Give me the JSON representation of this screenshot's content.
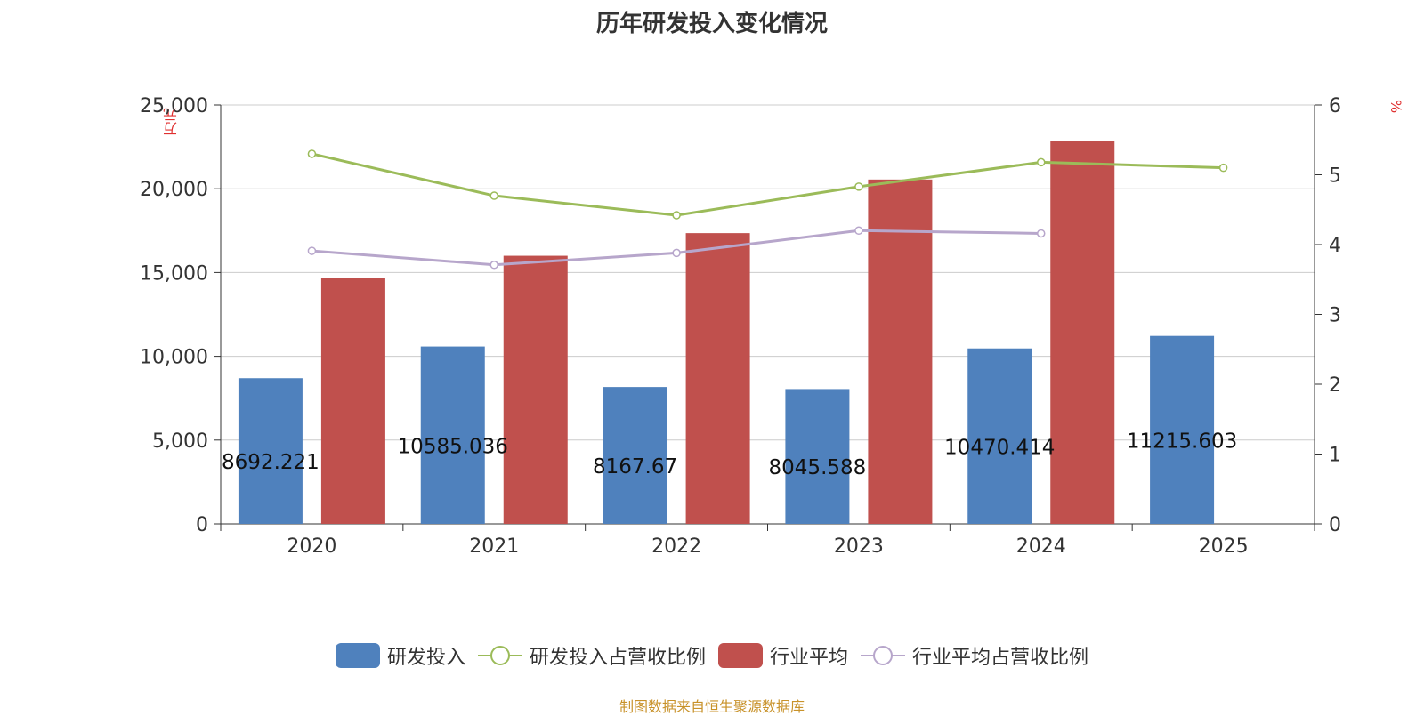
{
  "colors": {
    "rd_bar": "#4f81bd",
    "industry_bar": "#c0504d",
    "rd_ratio_line": "#9bbb59",
    "industry_ratio_line": "#b7a6cb",
    "unit_text": "#e03030",
    "source_text": "#c8922a"
  },
  "chart_data": {
    "type": "bar",
    "title": "历年研发投入变化情况",
    "categories": [
      "2020",
      "2021",
      "2022",
      "2023",
      "2024",
      "2025"
    ],
    "y_left": {
      "unit": "万元",
      "ylim": [
        0,
        25000
      ],
      "ticks": [
        "0",
        "5,000",
        "10,000",
        "15,000",
        "20,000",
        "25,000"
      ]
    },
    "y_right": {
      "unit": "%",
      "ylim": [
        0,
        6
      ],
      "ticks": [
        "0",
        "1",
        "2",
        "3",
        "4",
        "5",
        "6"
      ]
    },
    "grid": true,
    "legend_position": "bottom",
    "series": [
      {
        "name": "研发投入",
        "type": "bar",
        "axis": "left",
        "values": [
          8692.221,
          10585.036,
          8167.67,
          8045.588,
          10470.414,
          11215.603
        ],
        "labels": [
          "8692.221",
          "10585.036",
          "8167.67",
          "8045.588",
          "10470.414",
          "11215.603"
        ]
      },
      {
        "name": "研发投入占营收比例",
        "type": "line",
        "axis": "right",
        "values": [
          5.3,
          4.7,
          4.42,
          4.83,
          5.18,
          5.1
        ]
      },
      {
        "name": "行业平均",
        "type": "bar",
        "axis": "left",
        "values": [
          14650,
          16000,
          17350,
          20550,
          22850,
          null
        ]
      },
      {
        "name": "行业平均占营收比例",
        "type": "line",
        "axis": "right",
        "values": [
          3.91,
          3.71,
          3.88,
          4.2,
          4.16,
          null
        ]
      }
    ]
  },
  "source_note": "制图数据来自恒生聚源数据库"
}
